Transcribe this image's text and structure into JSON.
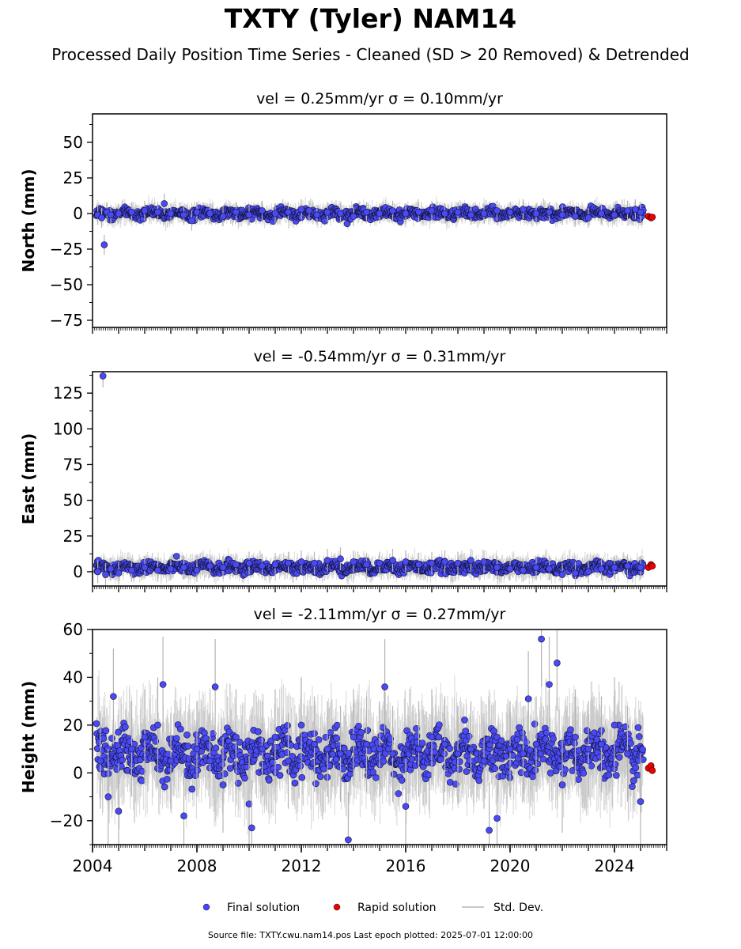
{
  "title": "TXTY (Tyler) NAM14",
  "subtitle": "Processed Daily Position Time Series - Cleaned (SD > 20 Removed) & Detrended",
  "footer": "Source file: TXTY.cwu.nam14.pos  Last epoch plotted: 2025-07-01 12:00:00",
  "legend": [
    {
      "label": "Final solution",
      "color": "#4444ff"
    },
    {
      "label": "Rapid solution",
      "color": "#ee0000"
    },
    {
      "label": "Std. Dev.",
      "color": "#c8c8c8"
    }
  ],
  "chart_data": [
    {
      "type": "scatter",
      "title": "vel = 0.25mm/yr   σ = 0.10mm/yr",
      "ylabel": "North (mm)",
      "xlim": [
        2004.0,
        2026.0
      ],
      "ylim": [
        -80,
        70
      ],
      "yticks": [
        50,
        25,
        0,
        -25,
        -50,
        -75
      ],
      "ytick_labels": [
        "50",
        "25",
        "0",
        "−25",
        "−50",
        "−75"
      ],
      "final_series": {
        "name": "Final solution",
        "x": [
          2004.2,
          2004.35,
          2004.45,
          2004.55,
          2004.7,
          2005.0,
          2005.5,
          2006.0,
          2006.5,
          2006.75,
          2007.0,
          2007.5,
          2007.8,
          2008.0,
          2008.5,
          2009.0,
          2009.5,
          2010.0,
          2010.5,
          2011.0,
          2011.5,
          2012.0,
          2012.3,
          2012.6,
          2013.0,
          2013.5,
          2014.0,
          2014.5,
          2015.0,
          2015.5,
          2016.0,
          2016.5,
          2017.0,
          2017.5,
          2018.0,
          2018.5,
          2019.0,
          2019.5,
          2020.0,
          2020.5,
          2021.0,
          2021.5,
          2022.0,
          2022.5,
          2023.0,
          2023.5,
          2024.0,
          2024.5,
          2024.8,
          2025.0
        ],
        "y": [
          -1,
          -3,
          -22,
          1,
          -1,
          0,
          1,
          2,
          1,
          7,
          0,
          -1,
          -5,
          1,
          0,
          -2,
          1,
          -1,
          2,
          0,
          1,
          3,
          2,
          -1,
          1,
          0,
          -2,
          1,
          0,
          2,
          0,
          1,
          2,
          0,
          1,
          -1,
          0,
          2,
          1,
          3,
          0,
          1,
          -1,
          -2,
          -3,
          0,
          -1,
          2,
          3,
          1
        ]
      },
      "rapid_series": {
        "name": "Rapid solution",
        "x": [
          2025.3,
          2025.4,
          2025.45
        ],
        "y": [
          -2,
          -3,
          -2.5
        ]
      },
      "line_stats": {
        "mean": 0,
        "spread": 3.5
      }
    },
    {
      "type": "scatter",
      "title": "vel = -0.54mm/yr   σ = 0.31mm/yr",
      "ylabel": "East (mm)",
      "xlim": [
        2004.0,
        2026.0
      ],
      "ylim": [
        -10,
        140
      ],
      "yticks": [
        125,
        100,
        75,
        50,
        25,
        0
      ],
      "ytick_labels": [
        "125",
        "100",
        "75",
        "50",
        "25",
        "0"
      ],
      "final_series": {
        "name": "Final solution",
        "x": [
          2004.2,
          2004.4,
          2004.5,
          2004.7,
          2005.0,
          2005.5,
          2006.0,
          2006.5,
          2007.0,
          2007.5,
          2008.0,
          2008.5,
          2009.0,
          2009.5,
          2010.0,
          2010.5,
          2011.0,
          2011.5,
          2012.0,
          2012.5,
          2013.0,
          2013.5,
          2014.0,
          2014.5,
          2015.0,
          2015.5,
          2016.0,
          2016.5,
          2017.0,
          2017.5,
          2018.0,
          2018.5,
          2019.0,
          2019.5,
          2020.0,
          2020.5,
          2021.0,
          2021.5,
          2022.0,
          2022.5,
          2023.0,
          2023.5,
          2024.0,
          2024.5,
          2025.0
        ],
        "y": [
          0,
          137,
          -2,
          2,
          -1,
          1,
          3,
          1,
          2,
          3,
          1,
          4,
          3,
          5,
          6,
          4,
          5,
          6,
          7,
          6,
          8,
          9,
          7,
          5,
          6,
          8,
          7,
          5,
          6,
          7,
          6,
          8,
          7,
          3,
          2,
          1,
          3,
          2,
          -2,
          -1,
          0,
          2,
          3,
          4,
          3
        ]
      },
      "rapid_series": {
        "name": "Rapid solution",
        "x": [
          2025.3,
          2025.4,
          2025.45
        ],
        "y": [
          3,
          5,
          4
        ]
      },
      "line_stats": {
        "mean": 3,
        "spread": 4
      }
    },
    {
      "type": "scatter",
      "title": "vel = -2.11mm/yr   σ = 0.27mm/yr",
      "ylabel": "Height (mm)",
      "xlim": [
        2004.0,
        2026.0
      ],
      "ylim": [
        -30,
        60
      ],
      "yticks": [
        60,
        40,
        20,
        0,
        -20
      ],
      "ytick_labels": [
        "60",
        "40",
        "20",
        "0",
        "−20"
      ],
      "final_series": {
        "name": "Final solution",
        "x": [
          2004.3,
          2004.6,
          2004.8,
          2005.0,
          2005.5,
          2006.0,
          2006.5,
          2006.7,
          2007.0,
          2007.5,
          2008.0,
          2008.5,
          2008.7,
          2009.0,
          2009.5,
          2010.0,
          2010.1,
          2010.5,
          2011.0,
          2011.5,
          2012.0,
          2012.5,
          2013.0,
          2013.5,
          2013.8,
          2014.0,
          2014.5,
          2015.0,
          2015.2,
          2015.5,
          2016.0,
          2016.5,
          2017.0,
          2017.5,
          2018.0,
          2018.5,
          2019.0,
          2019.2,
          2019.5,
          2020.0,
          2020.5,
          2020.7,
          2021.0,
          2021.2,
          2021.5,
          2021.8,
          2022.0,
          2022.5,
          2023.0,
          2023.5,
          2024.0,
          2024.5,
          2025.0
        ],
        "y": [
          5,
          -10,
          32,
          -16,
          10,
          15,
          20,
          37,
          5,
          -18,
          10,
          5,
          36,
          -5,
          15,
          -13,
          -23,
          10,
          15,
          5,
          20,
          12,
          10,
          8,
          -28,
          15,
          12,
          10,
          36,
          8,
          -14,
          10,
          15,
          12,
          8,
          10,
          5,
          -24,
          -19,
          10,
          8,
          31,
          12,
          56,
          37,
          46,
          -5,
          15,
          10,
          12,
          20,
          8,
          -12
        ]
      },
      "rapid_series": {
        "name": "Rapid solution",
        "x": [
          2025.3,
          2025.4,
          2025.45
        ],
        "y": [
          2,
          3,
          1
        ]
      },
      "line_stats": {
        "mean": 8,
        "spread": 10
      }
    }
  ],
  "x_ticks": [
    "2004",
    "2008",
    "2012",
    "2016",
    "2020",
    "2024"
  ]
}
